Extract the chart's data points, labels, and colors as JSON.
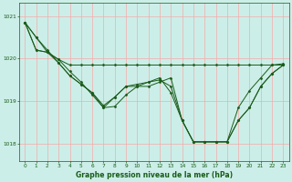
{
  "bg_color": "#cceee8",
  "grid_color": "#f5aaaa",
  "line_color": "#1a5c1a",
  "marker_color": "#1a5c1a",
  "xlabel": "Graphe pression niveau de la mer (hPa)",
  "xlabel_color": "#1a5c1a",
  "ylim": [
    1017.6,
    1021.3
  ],
  "xlim": [
    -0.5,
    23.5
  ],
  "yticks": [
    1018,
    1019,
    1020,
    1021
  ],
  "xticks": [
    0,
    1,
    2,
    3,
    4,
    5,
    6,
    7,
    8,
    9,
    10,
    11,
    12,
    13,
    14,
    15,
    16,
    17,
    18,
    19,
    20,
    21,
    22,
    23
  ],
  "series": [
    [
      1020.85,
      1020.5,
      1020.2,
      1019.9,
      1019.6,
      1019.4,
      1019.2,
      1018.85,
      1018.88,
      1019.15,
      1019.35,
      1019.35,
      1019.45,
      1019.55,
      1018.55,
      1018.05,
      1018.05,
      1018.05,
      1018.05,
      1018.55,
      1018.85,
      1019.35,
      1019.65,
      1019.85
    ],
    [
      1020.85,
      1020.2,
      1020.15,
      1019.98,
      1019.85,
      1019.85,
      1019.85,
      1019.85,
      1019.85,
      1019.85,
      1019.85,
      1019.85,
      1019.85,
      1019.85,
      1019.85,
      1019.85,
      1019.85,
      1019.85,
      1019.85,
      1019.85,
      1019.85,
      1019.85,
      1019.85,
      1019.88
    ],
    [
      1020.85,
      1020.2,
      1020.15,
      1019.98,
      1019.7,
      1019.45,
      1019.15,
      1018.85,
      1019.1,
      1019.35,
      1019.35,
      1019.45,
      1019.5,
      1019.35,
      1018.55,
      1018.05,
      1018.05,
      1018.05,
      1018.05,
      1018.85,
      1019.25,
      1019.55,
      1019.85,
      1019.85
    ],
    [
      1020.85,
      1020.5,
      1020.15,
      1019.9,
      1019.6,
      1019.4,
      1019.2,
      1018.9,
      1019.1,
      1019.35,
      1019.4,
      1019.45,
      1019.55,
      1019.2,
      1018.55,
      1018.05,
      1018.05,
      1018.05,
      1018.05,
      1018.55,
      1018.85,
      1019.35,
      1019.65,
      1019.85
    ]
  ],
  "figsize": [
    3.2,
    2.0
  ],
  "dpi": 100
}
